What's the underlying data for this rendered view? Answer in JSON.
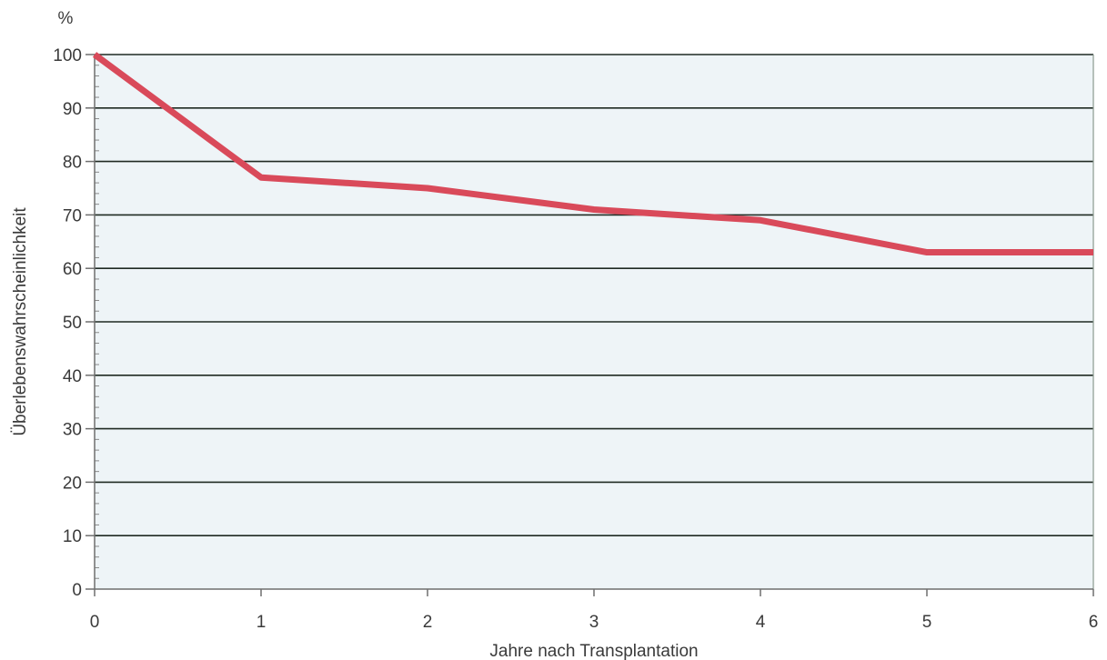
{
  "chart_data": {
    "type": "line",
    "title": "",
    "xlabel": "Jahre nach Transplantation",
    "ylabel": "Überlebenswahrscheinlichkeit",
    "yunit": "%",
    "xlim": [
      0,
      6
    ],
    "ylim": [
      0,
      100
    ],
    "x_ticks": [
      "0",
      "1",
      "2",
      "3",
      "4",
      "5",
      "6"
    ],
    "y_ticks": [
      "0",
      "10",
      "20",
      "30",
      "40",
      "50",
      "60",
      "70",
      "80",
      "90",
      "100"
    ],
    "grid": true,
    "series": [
      {
        "x": [
          0,
          1,
          2,
          3,
          4,
          5,
          6
        ],
        "y": [
          100,
          77,
          75,
          71,
          69,
          63,
          63
        ]
      }
    ],
    "colors": {
      "line": "#d94a5a",
      "plot_background": "#eef4f7",
      "grid": "#1f2a22",
      "text": "#3a3a3a"
    }
  }
}
